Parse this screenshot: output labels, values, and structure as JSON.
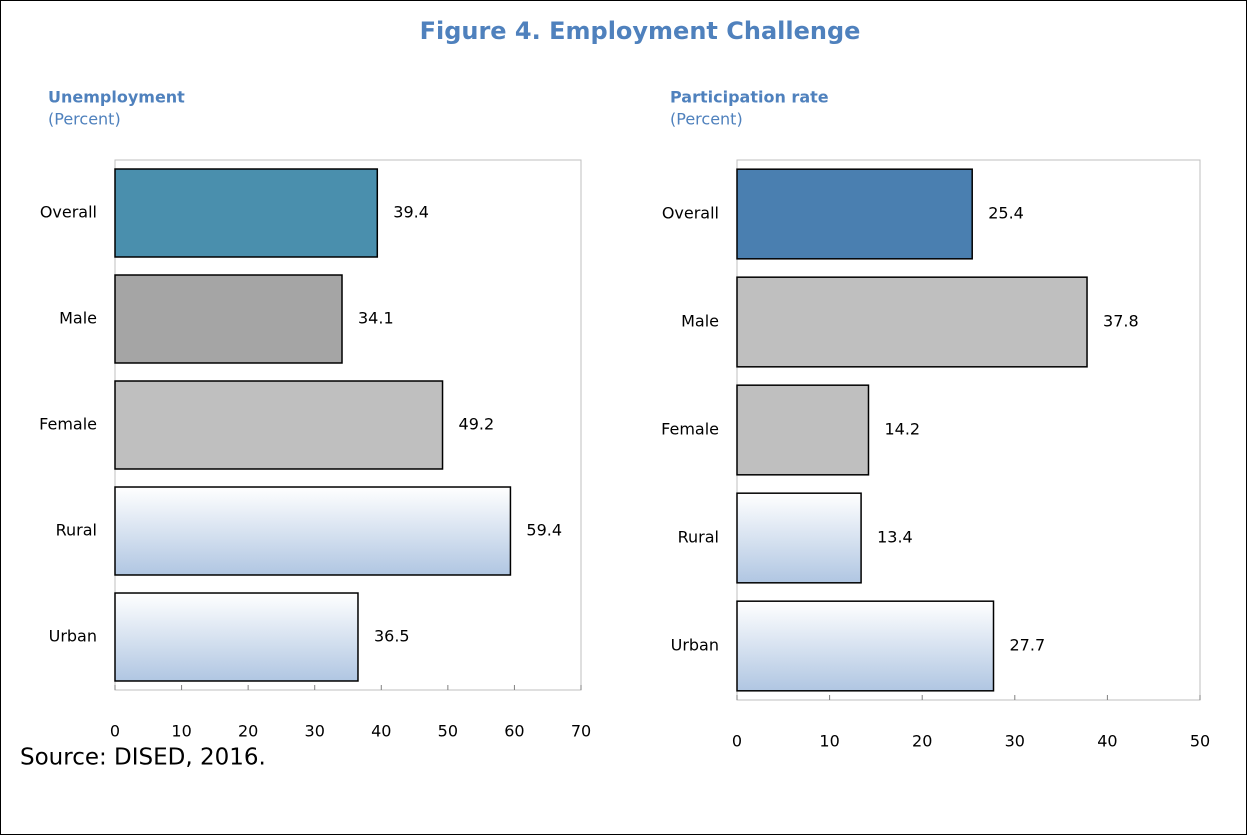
{
  "title": "Figure 4. Employment Challenge",
  "source": "Source: DISED, 2016.",
  "chart_data": [
    {
      "type": "bar",
      "orientation": "horizontal",
      "title": "Unemployment",
      "subtitle": "(Percent)",
      "categories": [
        "Overall",
        "Male",
        "Female",
        "Rural",
        "Urban"
      ],
      "values": [
        39.4,
        34.1,
        49.2,
        59.4,
        36.5
      ],
      "colors": [
        "#4a8fad",
        "#a5a5a5",
        "#bfbfbf",
        "#b0c6e2",
        "#b0c6e2"
      ],
      "gradient": [
        false,
        false,
        false,
        true,
        true
      ],
      "xlim": [
        0,
        70
      ],
      "xticks": [
        0,
        10,
        20,
        30,
        40,
        50,
        60,
        70
      ]
    },
    {
      "type": "bar",
      "orientation": "horizontal",
      "title": "Participation rate",
      "subtitle": "(Percent)",
      "categories": [
        "Overall",
        "Male",
        "Female",
        "Rural",
        "Urban"
      ],
      "values": [
        25.4,
        37.8,
        14.2,
        13.4,
        27.7
      ],
      "colors": [
        "#4a7fb0",
        "#bfbfbf",
        "#bfbfbf",
        "#b0c6e2",
        "#b0c6e2"
      ],
      "gradient": [
        false,
        false,
        false,
        true,
        true
      ],
      "xlim": [
        0,
        50
      ],
      "xticks": [
        0,
        10,
        20,
        30,
        40,
        50
      ]
    }
  ]
}
